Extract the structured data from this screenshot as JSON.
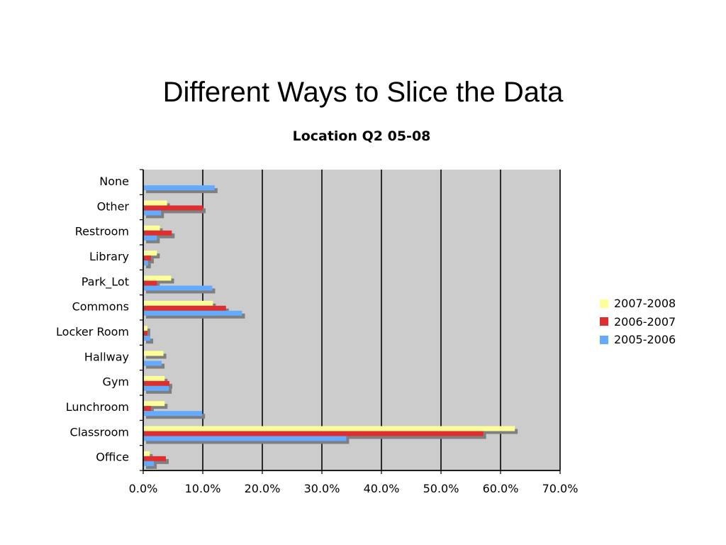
{
  "slide": {
    "title": "Different Ways to Slice the Data"
  },
  "chart_data": {
    "type": "bar",
    "orientation": "horizontal",
    "title": "Location Q2 05-08",
    "categories": [
      "None",
      "Other",
      "Restroom",
      "Library",
      "Park_Lot",
      "Commons",
      "Locker Room",
      "Hallway",
      "Gym",
      "Lunchroom",
      "Classroom",
      "Office"
    ],
    "series": [
      {
        "name": "2007-2008",
        "color": "#ffff99",
        "values": [
          0.0,
          4.0,
          2.8,
          2.3,
          4.7,
          11.7,
          0.7,
          3.4,
          3.6,
          3.6,
          62.4,
          1.1
        ]
      },
      {
        "name": "2006-2007",
        "color": "#dd2f2f",
        "values": [
          0.0,
          10.0,
          4.8,
          1.3,
          2.3,
          13.9,
          0.7,
          0.0,
          4.4,
          1.3,
          57.1,
          3.8
        ]
      },
      {
        "name": "2005-2006",
        "color": "#64aaff",
        "values": [
          12.0,
          3.0,
          2.3,
          0.8,
          11.6,
          16.6,
          1.2,
          3.1,
          4.3,
          9.9,
          34.1,
          1.8
        ]
      }
    ],
    "x_ticks": [
      "0.0%",
      "10.0%",
      "20.0%",
      "30.0%",
      "40.0%",
      "50.0%",
      "60.0%",
      "70.0%"
    ],
    "xlim": [
      0,
      70
    ],
    "x_unit": "%",
    "grid": true,
    "plot_background": "#cccccc",
    "shadow_color": "#7f7f7f",
    "legend_position": "right"
  }
}
